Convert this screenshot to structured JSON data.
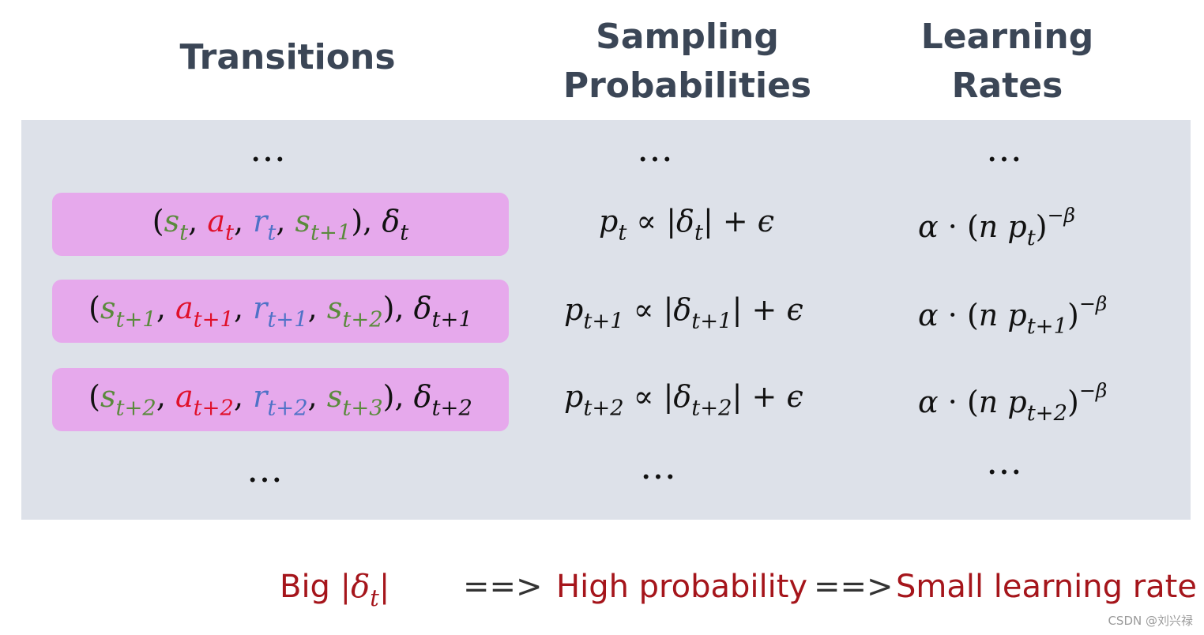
{
  "headers": {
    "transitions": "Transitions",
    "sampling_line1": "Sampling",
    "sampling_line2": "Probabilities",
    "learning_line1": "Learning",
    "learning_line2": "Rates"
  },
  "ellipsis": "…",
  "rows": [
    {
      "transition": {
        "s": "s",
        "s_sub": "t",
        "a": "a",
        "a_sub": "t",
        "r": "r",
        "r_sub": "t",
        "s2": "s",
        "s2_sub": "t+1",
        "delta": "δ",
        "delta_sub": "t"
      },
      "probability": {
        "p_sub": "t",
        "abs_sub": "t"
      },
      "rate": {
        "p_sub": "t"
      }
    },
    {
      "transition": {
        "s": "s",
        "s_sub": "t+1",
        "a": "a",
        "a_sub": "t+1",
        "r": "r",
        "r_sub": "t+1",
        "s2": "s",
        "s2_sub": "t+2",
        "delta": "δ",
        "delta_sub": "t+1"
      },
      "probability": {
        "p_sub": "t+1",
        "abs_sub": "t+1"
      },
      "rate": {
        "p_sub": "t+1"
      }
    },
    {
      "transition": {
        "s": "s",
        "s_sub": "t+2",
        "a": "a",
        "a_sub": "t+2",
        "r": "r",
        "r_sub": "t+2",
        "s2": "s",
        "s2_sub": "t+3",
        "delta": "δ",
        "delta_sub": "t+2"
      },
      "probability": {
        "p_sub": "t+2",
        "abs_sub": "t+2"
      },
      "rate": {
        "p_sub": "t+2"
      }
    }
  ],
  "symbols": {
    "p": "p",
    "propto": "∝",
    "delta": "δ",
    "plus": "+",
    "epsilon": "ϵ",
    "alpha": "α",
    "cdot": "·",
    "n": "n",
    "neg_beta": "−β"
  },
  "footer": {
    "big_label": "Big",
    "delta_sub": "t",
    "arrow1": "==>",
    "high_prob": "High probability",
    "arrow2": "==>",
    "small_lr": "Small learning rate"
  },
  "watermark": "CSDN @刘兴禄",
  "colors": {
    "state": "#5a8a3c",
    "action": "#e0102a",
    "reward": "#4f72c7",
    "box": "#e6a9ec",
    "panel": "#dde1e9",
    "header": "#3b4656",
    "footer_text": "#a5151b"
  }
}
